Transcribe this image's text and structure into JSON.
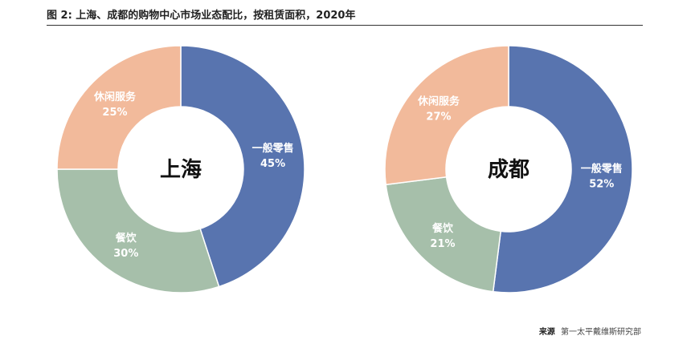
{
  "figure": {
    "title": "图 2: 上海、成都的购物中心市场业态配比，按租赁面积，2020年",
    "source_label": "来源",
    "source_text": "第一太平戴维斯研究部"
  },
  "colors": {
    "一般零售": "#5874af",
    "餐饮": "#a6bfaa",
    "休闲服务": "#f2ba9b"
  },
  "chart_data": [
    {
      "type": "pie",
      "center_label": "上海",
      "unit": "%",
      "slices": [
        {
          "label": "一般零售",
          "value": 45,
          "value_label": "45%"
        },
        {
          "label": "餐饮",
          "value": 30,
          "value_label": "30%"
        },
        {
          "label": "休闲服务",
          "value": 25,
          "value_label": "25%"
        }
      ]
    },
    {
      "type": "pie",
      "center_label": "成都",
      "unit": "%",
      "slices": [
        {
          "label": "一般零售",
          "value": 52,
          "value_label": "52%"
        },
        {
          "label": "餐饮",
          "value": 21,
          "value_label": "21%"
        },
        {
          "label": "休闲服务",
          "value": 27,
          "value_label": "27%"
        }
      ]
    }
  ]
}
